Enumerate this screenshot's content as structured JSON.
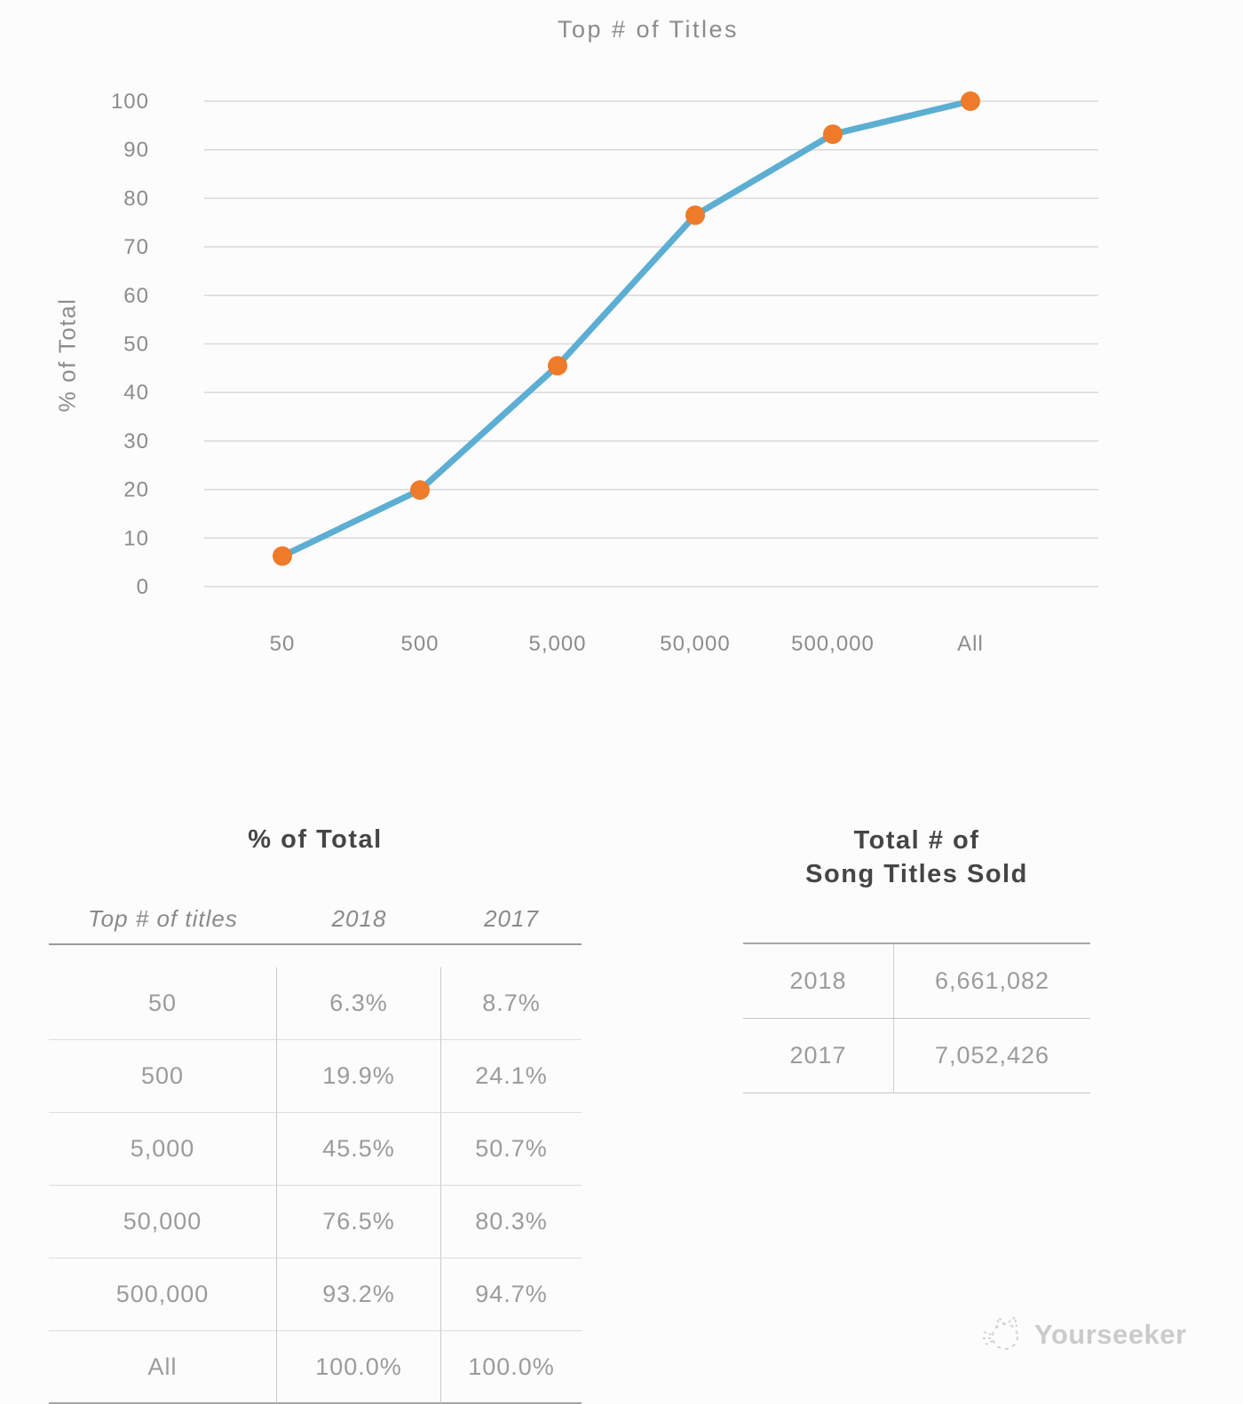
{
  "chart_data": {
    "type": "line",
    "title": "Top # of Titles",
    "categories": [
      "50",
      "500",
      "5,000",
      "50,000",
      "500,000",
      "All"
    ],
    "series": [
      {
        "name": "2018",
        "values": [
          6.3,
          19.9,
          45.5,
          76.5,
          93.2,
          100.0
        ]
      }
    ],
    "xlabel": "",
    "ylabel": "% of Total",
    "ylim": [
      0,
      100
    ],
    "ytick_step": 10,
    "grid": true,
    "legend": "none"
  },
  "chart_colors": {
    "line": "#5caed2",
    "marker": "#ee7b2a",
    "grid": "#d9d9d9",
    "axis_text": "#8c8c8c"
  },
  "left_table": {
    "title": "% of Total",
    "columns": [
      "Top # of titles",
      "2018",
      "2017"
    ],
    "rows": [
      [
        "50",
        "6.3%",
        "8.7%"
      ],
      [
        "500",
        "19.9%",
        "24.1%"
      ],
      [
        "5,000",
        "45.5%",
        "50.7%"
      ],
      [
        "50,000",
        "76.5%",
        "80.3%"
      ],
      [
        "500,000",
        "93.2%",
        "94.7%"
      ],
      [
        "All",
        "100.0%",
        "100.0%"
      ]
    ]
  },
  "right_table": {
    "title_line1": "Total # of",
    "title_line2": "Song Titles Sold",
    "rows": [
      [
        "2018",
        "6,661,082"
      ],
      [
        "2017",
        "7,052,426"
      ]
    ]
  },
  "footer": {
    "brand": "Yourseeker",
    "icon": "cat-sketch-icon"
  }
}
